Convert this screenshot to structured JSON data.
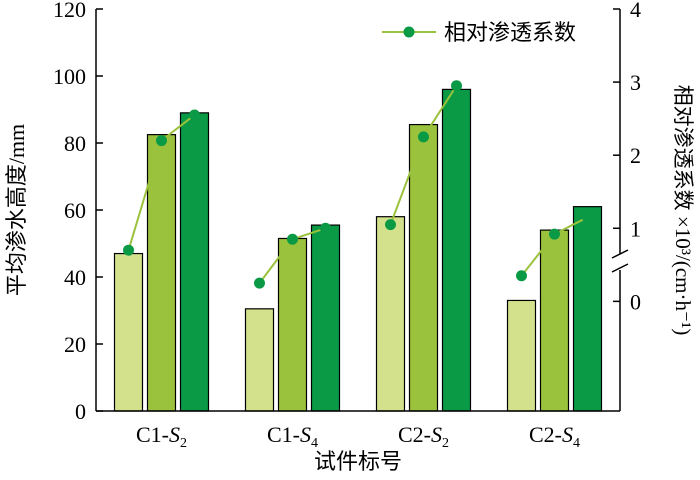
{
  "chart_data": {
    "type": "bar",
    "categories": [
      {
        "base": "C1-",
        "var": "S",
        "sub": "2"
      },
      {
        "base": "C1-",
        "var": "S",
        "sub": "4"
      },
      {
        "base": "C2-",
        "var": "S",
        "sub": "2"
      },
      {
        "base": "C2-",
        "var": "S",
        "sub": "4"
      }
    ],
    "bar_series": [
      {
        "values": [
          47,
          30.5,
          58,
          33
        ],
        "color": "#d3e18c"
      },
      {
        "values": [
          82.5,
          51.5,
          85.5,
          54
        ],
        "color": "#9bc23c"
      },
      {
        "values": [
          89,
          55.5,
          96,
          61
        ],
        "color": "#0a9a46"
      }
    ],
    "line_series": {
      "name": "相对渗透系数",
      "line_color": "#9bc23c",
      "marker_color": "#0a9a46",
      "values": [
        [
          0.7,
          2.2,
          2.55
        ],
        [
          0.25,
          0.85,
          1.0
        ],
        [
          1.05,
          2.25,
          2.95
        ],
        [
          0.35,
          0.92,
          1.15
        ]
      ]
    },
    "xlabel": "试件标号",
    "ylabel": "平均渗水高度/mm",
    "y2label": "相对渗透系数 ×10³/(cm·h⁻¹)",
    "ylim": [
      0,
      120
    ],
    "yticks": [
      "0",
      "20",
      "40",
      "60",
      "80",
      "100",
      "120"
    ],
    "y2lim": [
      -1.5,
      4
    ],
    "y2ticks": [
      "0",
      "1",
      "2",
      "3",
      "4"
    ],
    "y2_axis_break": true,
    "legend_position": "top-right"
  }
}
